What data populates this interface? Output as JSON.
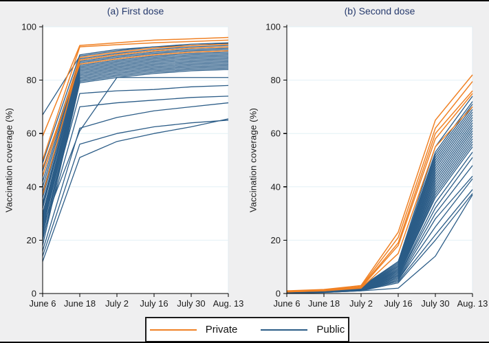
{
  "figure": {
    "background": "#efeff0",
    "border_color": "#000000",
    "plot_background": "#ffffff",
    "grid_color": "#e2f1f6",
    "axis_color": "#000000",
    "tick_label_color": "#1a1a1a",
    "title_color": "#263a6d"
  },
  "legend": {
    "position": "bottom-center",
    "items": [
      {
        "label": "Private",
        "color": "#f08124"
      },
      {
        "label": "Public",
        "color": "#2b5c87"
      }
    ]
  },
  "chart_data": [
    {
      "type": "line",
      "title": "(a) First dose",
      "ylabel": "Vaccination coverage (%)",
      "xlabel": "",
      "x_categories": [
        "June 6",
        "June 18",
        "July 2",
        "July 16",
        "July 30",
        "Aug. 13"
      ],
      "yticks": [
        0,
        20,
        40,
        60,
        80,
        100
      ],
      "ylim": [
        0,
        100
      ],
      "grid": true,
      "series": [
        {
          "name": "Public",
          "color_key": "public",
          "lines": [
            [
              67,
              89,
              91,
              92.5,
              93.5,
              94
            ],
            [
              49,
              89.5,
              91.5,
              92.5,
              93,
              93.8
            ],
            [
              46,
              88,
              90,
              91.5,
              92.5,
              93
            ],
            [
              44,
              87.5,
              89.5,
              91,
              92,
              92.5
            ],
            [
              42,
              87,
              89,
              90.5,
              91.5,
              92
            ],
            [
              40,
              86.5,
              88.5,
              90,
              91,
              91.5
            ],
            [
              38,
              86,
              88,
              89.5,
              90.5,
              91
            ],
            [
              36,
              85.5,
              87.5,
              89,
              90,
              90.5
            ],
            [
              34,
              85,
              87,
              88.5,
              89.5,
              90
            ],
            [
              33,
              84.5,
              86.5,
              88,
              89,
              89.5
            ],
            [
              32,
              84,
              86,
              87.5,
              88.5,
              89
            ],
            [
              30,
              83.5,
              85.5,
              87,
              88,
              88.5
            ],
            [
              29,
              83,
              85,
              86.5,
              87.5,
              88
            ],
            [
              28,
              82.5,
              84.5,
              86,
              87,
              87.5
            ],
            [
              27,
              82,
              84,
              85.5,
              86.5,
              87
            ],
            [
              26,
              81.5,
              83.5,
              85,
              86,
              86.5
            ],
            [
              25,
              81,
              83,
              84.5,
              85.5,
              86
            ],
            [
              24,
              80.5,
              82.5,
              84,
              85,
              85.5
            ],
            [
              22,
              80,
              82,
              83.5,
              84.5,
              85
            ],
            [
              20,
              79.5,
              81.5,
              83,
              84,
              84.5
            ],
            [
              18,
              79,
              81,
              82.5,
              83.5,
              84
            ],
            [
              25,
              61,
              81,
              81,
              81,
              81
            ],
            [
              23,
              75,
              76,
              76.5,
              77.5,
              78
            ],
            [
              21,
              70,
              71.5,
              72.5,
              73.5,
              74
            ],
            [
              16,
              62,
              66,
              68.5,
              70,
              71.5
            ],
            [
              14,
              56,
              60,
              62.5,
              64,
              65
            ],
            [
              12,
              51,
              57,
              60,
              62.5,
              65.5
            ]
          ]
        },
        {
          "name": "Private",
          "color_key": "private",
          "lines": [
            [
              59,
              93,
              94,
              95,
              95.5,
              96
            ],
            [
              50,
              92.5,
              93.3,
              94,
              94.5,
              95
            ],
            [
              44,
              88.5,
              90.5,
              92,
              93,
              93.5
            ],
            [
              37,
              87.5,
              89.5,
              91,
              92,
              92.5
            ],
            [
              47,
              86,
              88,
              89.5,
              90.5,
              91
            ]
          ]
        }
      ]
    },
    {
      "type": "line",
      "title": "(b) Second dose",
      "ylabel": "Vaccination coverage (%)",
      "xlabel": "",
      "x_categories": [
        "June 6",
        "June 18",
        "July 2",
        "July 16",
        "July 30",
        "Aug. 13"
      ],
      "yticks": [
        0,
        20,
        40,
        60,
        80,
        100
      ],
      "ylim": [
        0,
        100
      ],
      "grid": true,
      "series": [
        {
          "name": "Public",
          "color_key": "public",
          "lines": [
            [
              0.8,
              1.2,
              2.5,
              12,
              55,
              74
            ],
            [
              0.7,
              1.1,
              2.4,
              11.5,
              53,
              72
            ],
            [
              0.7,
              1.1,
              2.2,
              11,
              52,
              71
            ],
            [
              0.6,
              1,
              2.2,
              10.5,
              51,
              70
            ],
            [
              0.6,
              1,
              2.1,
              10,
              50,
              69
            ],
            [
              0.6,
              1,
              2,
              10,
              49,
              68
            ],
            [
              0.5,
              0.9,
              2,
              9.5,
              48,
              67
            ],
            [
              0.5,
              0.9,
              1.9,
              9,
              47,
              66
            ],
            [
              0.5,
              0.9,
              1.9,
              9,
              46,
              65
            ],
            [
              0.5,
              0.8,
              1.8,
              8.5,
              45,
              64
            ],
            [
              0.5,
              0.8,
              1.8,
              8.5,
              44,
              63
            ],
            [
              0.4,
              0.8,
              1.7,
              8,
              43,
              62
            ],
            [
              0.4,
              0.8,
              1.7,
              8,
              42,
              61
            ],
            [
              0.4,
              0.7,
              1.6,
              7.5,
              41,
              60
            ],
            [
              0.4,
              0.7,
              1.6,
              7.5,
              40,
              59
            ],
            [
              0.4,
              0.7,
              1.5,
              7,
              39,
              58
            ],
            [
              0.3,
              0.7,
              1.5,
              7,
              38,
              57
            ],
            [
              0.3,
              0.6,
              1.4,
              6.5,
              37,
              56
            ],
            [
              0.3,
              0.6,
              1.4,
              6.5,
              36,
              55
            ],
            [
              0.3,
              0.6,
              1.3,
              6,
              34,
              53
            ],
            [
              0.3,
              0.6,
              1.3,
              6,
              32,
              51
            ],
            [
              0.3,
              0.5,
              1.2,
              5.5,
              30,
              48
            ],
            [
              0.3,
              0.5,
              1.2,
              5,
              28,
              44
            ],
            [
              0.2,
              0.5,
              1.1,
              5,
              25,
              43
            ],
            [
              0.2,
              0.5,
              1.1,
              4.5,
              22,
              39
            ],
            [
              0.2,
              0.4,
              1,
              4,
              20,
              37.5
            ],
            [
              0.2,
              0.4,
              1,
              2,
              14,
              37
            ]
          ]
        },
        {
          "name": "Private",
          "color_key": "private",
          "lines": [
            [
              1,
              1.5,
              3,
              23,
              65,
              82
            ],
            [
              0.8,
              1.3,
              2.6,
              21,
              62,
              79.5
            ],
            [
              0.8,
              1.2,
              2.4,
              19,
              60,
              76
            ],
            [
              0.6,
              1,
              2.2,
              18,
              58,
              75
            ],
            [
              0.6,
              1,
              2,
              15,
              55,
              70
            ]
          ]
        }
      ]
    }
  ]
}
